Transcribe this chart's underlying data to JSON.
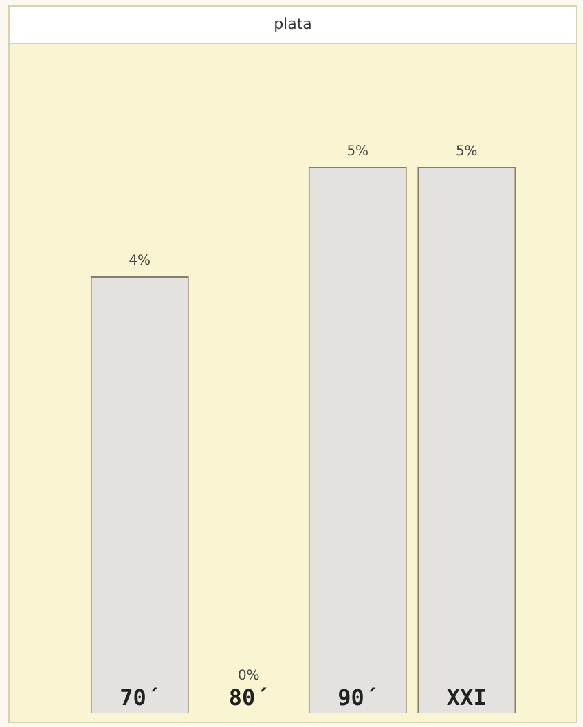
{
  "chart_data": {
    "type": "bar",
    "title": "plata",
    "categories": [
      "70´",
      "80´",
      "90´",
      "XXI"
    ],
    "values": [
      4,
      0,
      5,
      5
    ],
    "value_labels": [
      "4%",
      "0%",
      "5%",
      "5%"
    ],
    "color": "#e4e2de",
    "grid": false,
    "legend": false,
    "tick_labels": "x"
  }
}
